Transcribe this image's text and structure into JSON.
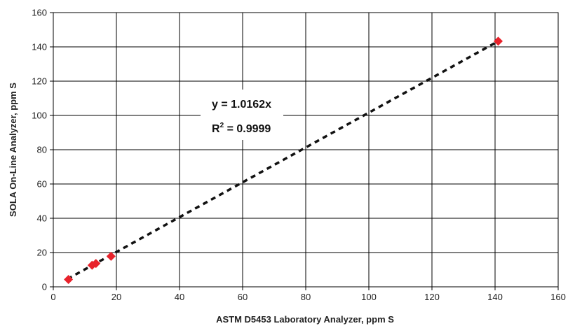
{
  "chart_data": {
    "type": "scatter",
    "title": "",
    "xlabel": "ASTM D5453 Laboratory Analyzer, ppm S",
    "ylabel": "SOLA On-Line Analyzer, ppm S",
    "xlim": [
      0,
      160
    ],
    "ylim": [
      0,
      160
    ],
    "xticks": [
      "0",
      "20",
      "40",
      "60",
      "80",
      "100",
      "120",
      "140",
      "160"
    ],
    "yticks": [
      "0",
      "20",
      "40",
      "60",
      "80",
      "100",
      "120",
      "140",
      "160"
    ],
    "grid": true,
    "series": [
      {
        "marker": "diamond",
        "color": "#e8222b",
        "points": [
          {
            "x": 4.8,
            "y": 4.3
          },
          {
            "x": 12.3,
            "y": 12.6
          },
          {
            "x": 13.5,
            "y": 13.6
          },
          {
            "x": 18.3,
            "y": 17.8
          },
          {
            "x": 141.0,
            "y": 143.3
          }
        ]
      }
    ],
    "trendline": {
      "style": "dotted",
      "color": "#111111",
      "slope": 1.0162,
      "x_range": [
        4.5,
        141.0
      ]
    },
    "annotation": {
      "equation": "y = 1.0162x",
      "r2_label": "R",
      "r2_sup": "2",
      "r2_value": " = 0.9999"
    }
  }
}
